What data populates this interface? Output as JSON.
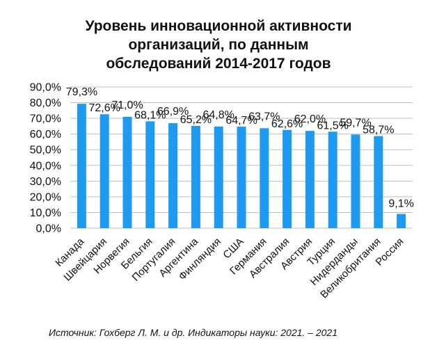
{
  "chart_data": {
    "type": "bar",
    "title": [
      "Уровень инновационной активности",
      "организаций, по данным",
      "обследований 2014-2017 годов"
    ],
    "categories": [
      "Канада",
      "Швейцария",
      "Норвегия",
      "Бельгия",
      "Португалия",
      "Аргентина",
      "Финляндия",
      "США",
      "Германия",
      "Австралия",
      "Австрия",
      "Турция",
      "Нидерданды",
      "Великобритания",
      "Россия"
    ],
    "values": [
      79.3,
      72.6,
      71.0,
      68.1,
      66.9,
      65.2,
      64.8,
      64.7,
      63.7,
      62.6,
      62.0,
      61.5,
      59.7,
      58.7,
      9.1
    ],
    "data_labels": [
      "79,3%",
      "72,6%",
      "71,0%",
      "68,1%",
      "66,9%",
      "65,2%",
      "64,8%",
      "64,7%",
      "63,7%",
      "62,6%",
      "62,0%",
      "61,5%",
      "59,7%",
      "58,7%",
      "9,1%"
    ],
    "yticks": [
      "0,0%",
      "10,0%",
      "20,0%",
      "30,0%",
      "40,0%",
      "50,0%",
      "60,0%",
      "70,0%",
      "80,0%",
      "90,0%"
    ],
    "ylim": [
      0,
      90
    ],
    "grid": true,
    "bar_color": "#1e9bf0",
    "grid_color": "#bfbfbf",
    "source": "Источник: Гохберг Л. М. и др. Индикаторы науки: 2021. – 2021"
  }
}
